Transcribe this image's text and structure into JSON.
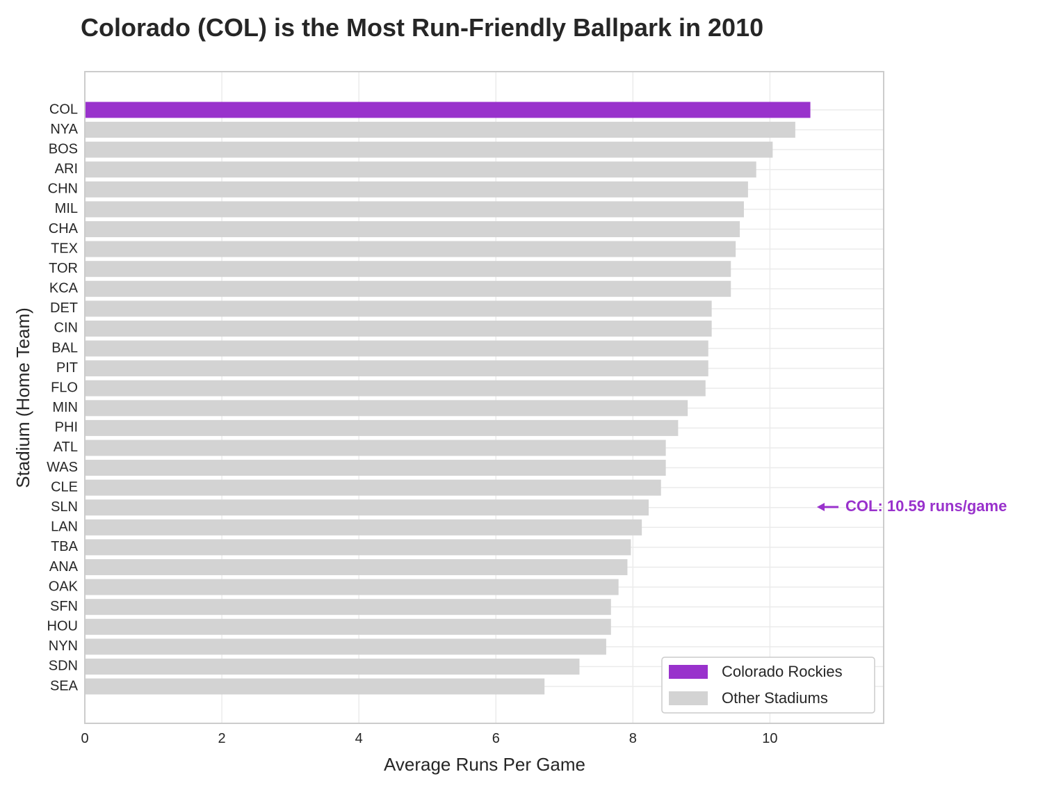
{
  "chart_data": {
    "type": "bar",
    "orientation": "horizontal",
    "title": "Colorado (COL) is the Most Run-Friendly Ballpark in 2010",
    "xlabel": "Average Runs Per Game",
    "ylabel": "Stadium (Home Team)",
    "xlim": [
      0,
      11.66
    ],
    "xticks": [
      0,
      2,
      4,
      6,
      8,
      10
    ],
    "grid": true,
    "categories": [
      "COL",
      "NYA",
      "BOS",
      "ARI",
      "CHN",
      "MIL",
      "CHA",
      "TEX",
      "TOR",
      "KCA",
      "DET",
      "CIN",
      "BAL",
      "PIT",
      "FLO",
      "MIN",
      "PHI",
      "ATL",
      "WAS",
      "CLE",
      "SLN",
      "LAN",
      "TBA",
      "ANA",
      "OAK",
      "SFN",
      "HOU",
      "NYN",
      "SDN",
      "SEA"
    ],
    "values": [
      10.59,
      10.37,
      10.04,
      9.8,
      9.68,
      9.62,
      9.56,
      9.5,
      9.43,
      9.43,
      9.15,
      9.15,
      9.1,
      9.1,
      9.06,
      8.8,
      8.66,
      8.48,
      8.48,
      8.41,
      8.23,
      8.13,
      7.97,
      7.92,
      7.79,
      7.68,
      7.68,
      7.61,
      7.22,
      6.71
    ],
    "highlight": "COL",
    "colors": {
      "highlight": "#9932CC",
      "other": "#D3D3D3"
    },
    "legend": {
      "placement": "lower-right",
      "entries": [
        "Colorado Rockies",
        "Other Stadiums"
      ]
    },
    "annotation": "COL: 10.59 runs/game"
  }
}
